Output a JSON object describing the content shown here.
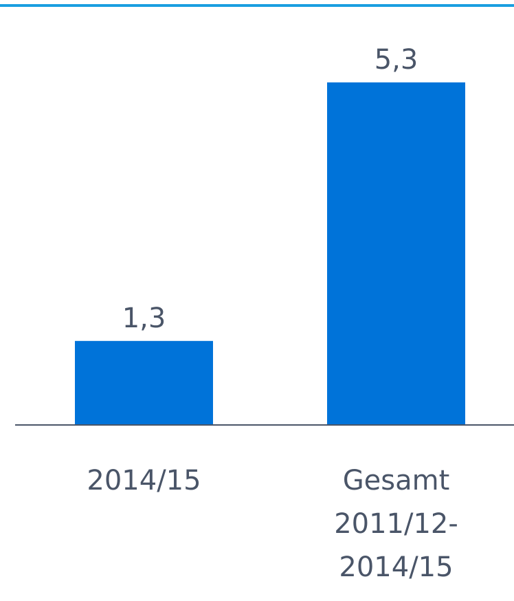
{
  "chart_data": {
    "type": "bar",
    "categories": [
      "2014/15",
      "Gesamt\n2011/12-\n2014/15"
    ],
    "values": [
      1.3,
      5.3
    ],
    "value_labels": [
      "1,3",
      "5,3"
    ],
    "color": "#0073d9",
    "ylim": [
      0,
      6
    ]
  }
}
